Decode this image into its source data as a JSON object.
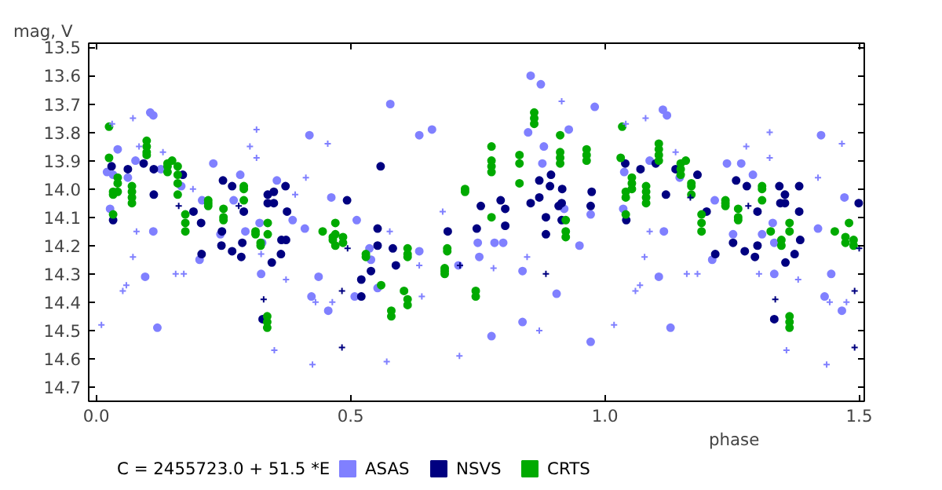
{
  "chart_data": {
    "type": "scatter",
    "xlabel": "phase",
    "ylabel": "mag, V",
    "annotations": [
      "C = 2455723.0 + 51.5 *E"
    ],
    "xlim": [
      -0.015,
      1.51
    ],
    "ylim": [
      14.75,
      13.485
    ],
    "xticks": [
      {
        "value": 0,
        "label": "0.0"
      },
      0.5,
      {
        "value": 1,
        "label": "1.0"
      },
      1.5
    ],
    "yticks": [
      13.5,
      13.6,
      13.7,
      13.8,
      13.9,
      {
        "value": 14,
        "label": "14.0"
      },
      14.1,
      14.2,
      14.3,
      14.4,
      14.5,
      14.6,
      14.7
    ],
    "grid": false,
    "legend": "bottom",
    "series": [
      {
        "name": "ASAS",
        "color": "#8080ff",
        "marker": "circle",
        "x": [
          0.021,
          0.027,
          0.033,
          0.042,
          0.062,
          0.077,
          0.096,
          0.106,
          0.112,
          0.112,
          0.12,
          0.127,
          0.167,
          0.208,
          0.203,
          0.23,
          0.244,
          0.27,
          0.283,
          0.293,
          0.324,
          0.321,
          0.326,
          0.355,
          0.386,
          0.41,
          0.419,
          0.423,
          0.437,
          0.456,
          0.462,
          0.512,
          0.508,
          0.537,
          0.54,
          0.553,
          0.578,
          0.635,
          0.635,
          0.66,
          0.712,
          0.75,
          0.753,
          0.777,
          0.783,
          0.8,
          0.838,
          0.838,
          0.849,
          0.854,
          0.874,
          0.88,
          0.877,
          0.905,
          0.92,
          0.929,
          0.95,
          0.972,
          0.972,
          0.98,
          1.036,
          1.038,
          1.088,
          1.106,
          1.114,
          1.122,
          1.116,
          1.129,
          1.147,
          1.216,
          1.211,
          1.24,
          1.252,
          1.268,
          1.291,
          1.309,
          1.33,
          1.333,
          1.333,
          1.419,
          1.425,
          1.432,
          1.445,
          1.466,
          1.471
        ],
        "values": [
          13.94,
          14.07,
          13.95,
          13.86,
          13.96,
          13.9,
          14.31,
          13.73,
          13.74,
          14.15,
          14.49,
          13.93,
          13.99,
          14.04,
          14.25,
          13.91,
          14.16,
          14.04,
          13.95,
          14.15,
          14.3,
          14.12,
          14.19,
          13.97,
          14.11,
          14.14,
          13.81,
          14.38,
          14.31,
          14.43,
          14.03,
          14.11,
          14.38,
          14.21,
          14.25,
          14.35,
          13.7,
          13.81,
          14.22,
          13.79,
          14.27,
          14.19,
          14.24,
          14.52,
          14.19,
          14.19,
          14.29,
          14.47,
          13.8,
          13.6,
          13.63,
          13.85,
          13.91,
          14.37,
          14.07,
          13.79,
          14.2,
          14.09,
          14.54,
          13.71,
          14.07,
          13.94,
          13.9,
          14.31,
          13.72,
          13.74,
          14.15,
          14.49,
          13.96,
          14.04,
          14.25,
          13.91,
          14.16,
          13.91,
          13.95,
          14.16,
          14.12,
          14.3,
          14.19,
          14.14,
          13.81,
          14.38,
          14.3,
          14.43,
          14.03
        ]
      },
      {
        "name": "NSVS",
        "color": "#000080",
        "marker": "circle",
        "x": [
          0.03,
          0.033,
          0.062,
          0.093,
          0.113,
          0.113,
          0.17,
          0.191,
          0.206,
          0.207,
          0.249,
          0.247,
          0.246,
          0.267,
          0.267,
          0.287,
          0.29,
          0.285,
          0.327,
          0.337,
          0.337,
          0.345,
          0.349,
          0.349,
          0.363,
          0.364,
          0.372,
          0.375,
          0.373,
          0.493,
          0.521,
          0.521,
          0.54,
          0.553,
          0.553,
          0.559,
          0.583,
          0.589,
          0.691,
          0.748,
          0.756,
          0.795,
          0.804,
          0.804,
          0.854,
          0.871,
          0.871,
          0.884,
          0.884,
          0.894,
          0.892,
          0.909,
          0.915,
          0.916,
          0.915,
          0.974,
          0.972,
          1.04,
          1.042,
          1.07,
          1.1,
          1.12,
          1.139,
          1.182,
          1.2,
          1.217,
          1.258,
          1.252,
          1.275,
          1.279,
          1.3,
          1.295,
          1.3,
          1.333,
          1.343,
          1.345,
          1.354,
          1.354,
          1.355,
          1.373,
          1.382,
          1.382,
          1.384,
          1.499
        ],
        "values": [
          13.92,
          14.11,
          13.93,
          13.91,
          13.93,
          14.02,
          13.95,
          14.08,
          14.12,
          14.23,
          13.97,
          14.15,
          14.2,
          13.99,
          14.22,
          14.19,
          14.08,
          14.24,
          14.46,
          14.02,
          14.05,
          14.26,
          14.01,
          14.05,
          14.23,
          14.18,
          13.99,
          14.08,
          14.18,
          14.04,
          14.32,
          14.38,
          14.29,
          14.2,
          14.14,
          13.92,
          14.21,
          14.27,
          14.15,
          14.14,
          14.06,
          14.04,
          14.07,
          14.13,
          14.05,
          13.97,
          14.03,
          14.1,
          14.16,
          13.95,
          13.99,
          14.06,
          14.05,
          14.0,
          14.11,
          14.01,
          14.06,
          13.91,
          14.11,
          13.93,
          13.91,
          14.02,
          13.93,
          13.95,
          14.08,
          14.23,
          13.97,
          14.19,
          14.22,
          13.99,
          14.2,
          14.24,
          14.08,
          14.46,
          13.99,
          14.05,
          14.02,
          14.05,
          14.26,
          14.23,
          13.99,
          14.08,
          14.18,
          14.05
        ]
      },
      {
        "name": "CRTS",
        "color": "#00aa00",
        "marker": "circle",
        "x": [
          0.025,
          0.025,
          0.033,
          0.033,
          0.033,
          0.042,
          0.042,
          0.042,
          0.07,
          0.07,
          0.07,
          0.07,
          0.099,
          0.099,
          0.099,
          0.099,
          0.14,
          0.14,
          0.14,
          0.149,
          0.16,
          0.16,
          0.16,
          0.16,
          0.175,
          0.175,
          0.175,
          0.22,
          0.22,
          0.22,
          0.25,
          0.25,
          0.25,
          0.29,
          0.29,
          0.29,
          0.313,
          0.313,
          0.323,
          0.323,
          0.336,
          0.336,
          0.336,
          0.337,
          0.337,
          0.445,
          0.465,
          0.465,
          0.47,
          0.47,
          0.47,
          0.485,
          0.485,
          0.53,
          0.53,
          0.56,
          0.58,
          0.58,
          0.605,
          0.612,
          0.612,
          0.612,
          0.612,
          0.612,
          0.685,
          0.685,
          0.685,
          0.69,
          0.69,
          0.725,
          0.725,
          0.746,
          0.746,
          0.777,
          0.777,
          0.777,
          0.777,
          0.777,
          0.832,
          0.832,
          0.832,
          0.861,
          0.861,
          0.861,
          0.912,
          0.912,
          0.912,
          0.912,
          0.923,
          0.923,
          0.923,
          0.964,
          0.964,
          0.964,
          1.034,
          1.031,
          1.041,
          1.041,
          1.041,
          1.053,
          1.053,
          1.053,
          1.081,
          1.081,
          1.081,
          1.081,
          1.106,
          1.106,
          1.106,
          1.106,
          1.149,
          1.149,
          1.149,
          1.159,
          1.17,
          1.17,
          1.17,
          1.19,
          1.19,
          1.19,
          1.237,
          1.237,
          1.237,
          1.262,
          1.262,
          1.262,
          1.309,
          1.309,
          1.309,
          1.326,
          1.347,
          1.347,
          1.363,
          1.363,
          1.363,
          1.363,
          1.363,
          1.452,
          1.473,
          1.473,
          1.48,
          1.489,
          1.489
        ],
        "values": [
          13.78,
          13.89,
          14.01,
          14.02,
          14.09,
          13.96,
          13.98,
          14.01,
          13.99,
          14.01,
          14.03,
          14.05,
          13.83,
          13.85,
          13.87,
          13.88,
          13.91,
          13.92,
          13.94,
          13.9,
          13.92,
          13.95,
          13.98,
          14.02,
          14.09,
          14.12,
          14.15,
          14.04,
          14.05,
          14.06,
          14.07,
          14.1,
          14.11,
          13.99,
          14.0,
          14.04,
          14.15,
          14.16,
          14.19,
          14.2,
          14.45,
          14.47,
          14.49,
          14.12,
          14.16,
          14.15,
          14.17,
          14.18,
          14.12,
          14.16,
          14.2,
          14.17,
          14.19,
          14.23,
          14.24,
          14.34,
          14.43,
          14.45,
          14.36,
          14.39,
          14.41,
          14.21,
          14.23,
          14.24,
          14.28,
          14.29,
          14.3,
          14.21,
          14.22,
          14.0,
          14.01,
          14.36,
          14.38,
          13.85,
          13.9,
          13.92,
          13.94,
          14.1,
          13.88,
          13.91,
          13.98,
          13.73,
          13.75,
          13.77,
          13.81,
          13.87,
          13.89,
          13.91,
          14.11,
          14.15,
          14.17,
          13.86,
          13.88,
          13.9,
          13.78,
          13.89,
          14.01,
          14.03,
          14.09,
          13.96,
          13.98,
          14.0,
          13.99,
          14.01,
          14.03,
          14.05,
          13.84,
          13.86,
          13.88,
          13.9,
          13.91,
          13.93,
          13.95,
          13.9,
          13.98,
          13.99,
          14.02,
          14.09,
          14.12,
          14.15,
          14.04,
          14.05,
          14.06,
          14.07,
          14.1,
          14.11,
          13.99,
          14.0,
          14.04,
          14.15,
          14.18,
          14.2,
          14.12,
          14.15,
          14.45,
          14.47,
          14.49,
          14.15,
          14.17,
          14.19,
          14.12,
          14.18,
          14.2
        ]
      },
      {
        "color": "#8080ff",
        "marker": "cross",
        "x": [
          0.01,
          0.031,
          0.052,
          0.059,
          0.072,
          0.072,
          0.079,
          0.084,
          0.131,
          0.156,
          0.172,
          0.19,
          0.302,
          0.315,
          0.315,
          0.324,
          0.35,
          0.373,
          0.391,
          0.412,
          0.425,
          0.431,
          0.455,
          0.464,
          0.577,
          0.571,
          0.635,
          0.64,
          0.681,
          0.714,
          0.781,
          0.847,
          0.871,
          0.915,
          1.018,
          1.041,
          1.06,
          1.069,
          1.08,
          1.078,
          1.088,
          1.139,
          1.161,
          1.182,
          1.278,
          1.324,
          1.324,
          1.303,
          1.357,
          1.38,
          1.419,
          1.436,
          1.442,
          1.466,
          1.475
        ],
        "values": [
          14.48,
          13.77,
          14.36,
          14.34,
          13.75,
          14.24,
          14.15,
          13.85,
          13.87,
          14.3,
          14.3,
          14.0,
          13.85,
          13.79,
          13.89,
          14.23,
          14.57,
          14.32,
          14.02,
          13.96,
          14.62,
          14.4,
          13.84,
          14.4,
          14.15,
          14.61,
          14.27,
          14.38,
          14.08,
          14.59,
          14.28,
          14.24,
          14.5,
          13.69,
          14.48,
          13.77,
          14.36,
          14.34,
          13.75,
          14.24,
          14.15,
          13.87,
          14.3,
          14.3,
          13.85,
          13.89,
          13.8,
          14.3,
          14.57,
          14.32,
          13.96,
          14.62,
          14.4,
          13.84,
          14.4
        ]
      },
      {
        "color": "#000080",
        "marker": "cross",
        "x": [
          0.162,
          0.28,
          0.329,
          0.483,
          0.483,
          0.494,
          0.715,
          0.884,
          1.168,
          1.282,
          1.335,
          1.491,
          1.491,
          1.5
        ],
        "values": [
          14.06,
          14.06,
          14.39,
          14.36,
          14.56,
          14.21,
          14.27,
          14.3,
          14.03,
          14.06,
          14.39,
          14.36,
          14.56,
          14.21
        ]
      }
    ]
  }
}
